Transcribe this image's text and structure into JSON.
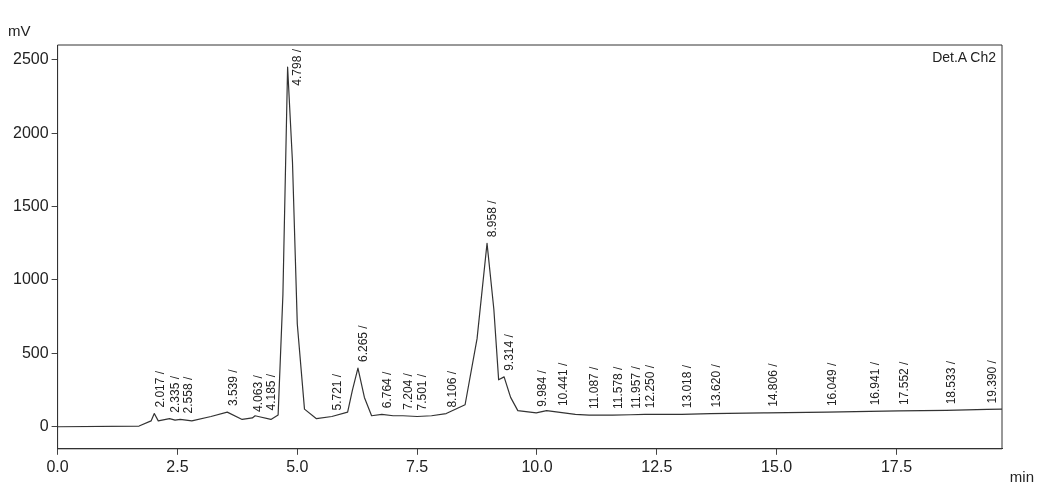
{
  "chart_data": {
    "type": "line",
    "ylabel": "mV",
    "xlabel": "min",
    "xlim": [
      0,
      19.7
    ],
    "xticks": [
      {
        "value": 0,
        "label": "0.0"
      },
      {
        "value": 2.5,
        "label": "2.5"
      },
      {
        "value": 5,
        "label": "5.0"
      },
      {
        "value": 7.5,
        "label": "7.5"
      },
      {
        "value": 10,
        "label": "10.0"
      },
      {
        "value": 12.5,
        "label": "12.5"
      },
      {
        "value": 15,
        "label": "15.0"
      },
      {
        "value": 17.5,
        "label": "17.5"
      }
    ],
    "ylim": [
      -150,
      2600
    ],
    "yticks": [
      0,
      500,
      1000,
      1500,
      2000,
      2500
    ],
    "marker": "none",
    "legend": false,
    "series": [
      {
        "color": "#333333",
        "x": [
          0,
          1.7,
          1.95,
          2.017,
          2.1,
          2.335,
          2.45,
          2.558,
          2.8,
          3.2,
          3.539,
          3.85,
          4.063,
          4.12,
          4.185,
          4.45,
          4.6,
          4.7,
          4.798,
          4.9,
          5.0,
          5.15,
          5.4,
          5.721,
          6.05,
          6.15,
          6.265,
          6.4,
          6.55,
          6.764,
          7.0,
          7.204,
          7.501,
          7.8,
          8.106,
          8.5,
          8.75,
          8.958,
          9.1,
          9.2,
          9.314,
          9.45,
          9.6,
          9.984,
          10.2,
          10.441,
          10.8,
          11.087,
          11.578,
          11.957,
          12.25,
          13.018,
          13.62,
          14.806,
          16.049,
          16.941,
          17.552,
          18.533,
          19.39,
          19.7
        ],
        "values": [
          0,
          5,
          40,
          90,
          40,
          55,
          45,
          50,
          40,
          70,
          100,
          50,
          60,
          75,
          70,
          50,
          80,
          900,
          2450,
          1800,
          700,
          120,
          55,
          70,
          100,
          250,
          400,
          200,
          75,
          85,
          75,
          75,
          70,
          75,
          90,
          150,
          600,
          1250,
          800,
          320,
          340,
          200,
          110,
          95,
          110,
          100,
          85,
          80,
          80,
          82,
          85,
          85,
          90,
          95,
          100,
          105,
          108,
          112,
          118,
          120
        ]
      }
    ],
    "annotations": [
      {
        "text": "2.017 /",
        "x": 2.017,
        "y": 90
      },
      {
        "text": "2.335 /",
        "x": 2.335,
        "y": 55
      },
      {
        "text": "2.558 /",
        "x": 2.558,
        "y": 50
      },
      {
        "text": "3.539 /",
        "x": 3.539,
        "y": 100
      },
      {
        "text": "4.063 /",
        "x": 4.063,
        "y": 60
      },
      {
        "text": "4.185 /",
        "x": 4.185,
        "y": 70
      },
      {
        "text": "4.798 /",
        "x": 4.798,
        "y": 2450
      },
      {
        "text": "5.721 /",
        "x": 5.721,
        "y": 70
      },
      {
        "text": "6.265 /",
        "x": 6.265,
        "y": 400
      },
      {
        "text": "6.764 /",
        "x": 6.764,
        "y": 85
      },
      {
        "text": "7.204 /",
        "x": 7.204,
        "y": 75
      },
      {
        "text": "7.501 /",
        "x": 7.501,
        "y": 70
      },
      {
        "text": "8.106 /",
        "x": 8.106,
        "y": 90
      },
      {
        "text": "8.958 /",
        "x": 8.958,
        "y": 1250
      },
      {
        "text": "9.314 /",
        "x": 9.314,
        "y": 340
      },
      {
        "text": "9.984 /",
        "x": 9.984,
        "y": 95
      },
      {
        "text": "10.441 /",
        "x": 10.441,
        "y": 100
      },
      {
        "text": "11.087 /",
        "x": 11.087,
        "y": 80
      },
      {
        "text": "11.578 /",
        "x": 11.578,
        "y": 80
      },
      {
        "text": "11.957 /",
        "x": 11.957,
        "y": 82
      },
      {
        "text": "12.250 /",
        "x": 12.25,
        "y": 85
      },
      {
        "text": "13.018 /",
        "x": 13.018,
        "y": 85
      },
      {
        "text": "13.620 /",
        "x": 13.62,
        "y": 90
      },
      {
        "text": "14.806 /",
        "x": 14.806,
        "y": 95
      },
      {
        "text": "16.049 /",
        "x": 16.049,
        "y": 100
      },
      {
        "text": "16.941 /",
        "x": 16.941,
        "y": 105
      },
      {
        "text": "17.552 /",
        "x": 17.552,
        "y": 108
      },
      {
        "text": "18.533 /",
        "x": 18.533,
        "y": 112
      },
      {
        "text": "19.390 /",
        "x": 19.39,
        "y": 118
      },
      "Det.A Ch2"
    ]
  }
}
